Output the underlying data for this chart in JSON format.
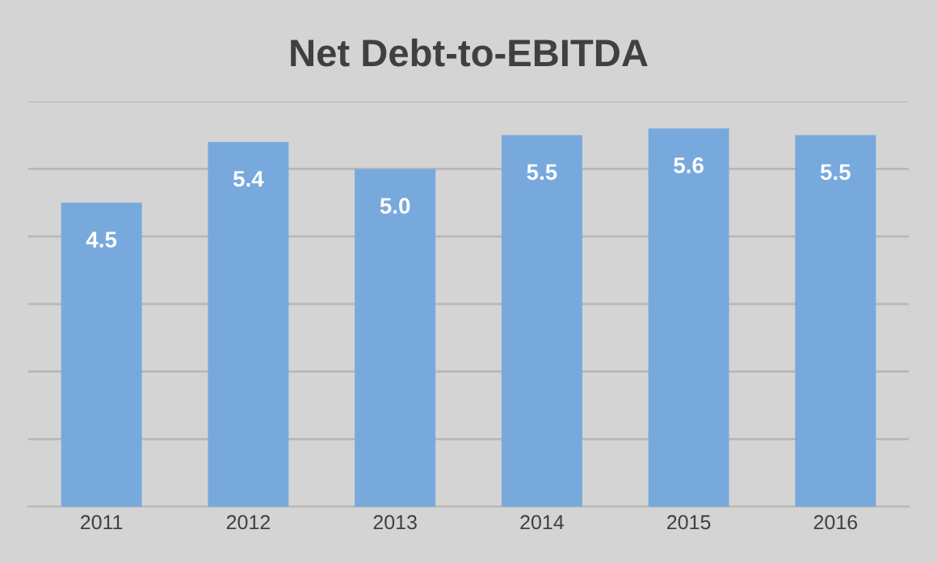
{
  "chart_data": {
    "type": "bar",
    "title": "Net Debt-to-EBITDA",
    "categories": [
      "2011",
      "2012",
      "2013",
      "2014",
      "2015",
      "2016"
    ],
    "values": [
      4.5,
      5.4,
      5.0,
      5.5,
      5.6,
      5.5
    ],
    "color": "#78a9dd",
    "ylim": [
      0,
      6
    ],
    "yticks": [
      {
        "value": 0,
        "label": null
      },
      {
        "value": 1,
        "label": null
      },
      {
        "value": 2,
        "label": null
      },
      {
        "value": 3,
        "label": null
      },
      {
        "value": 4,
        "label": null
      },
      {
        "value": 5,
        "label": null
      },
      {
        "value": 6,
        "label": null
      }
    ],
    "value_labels": [
      "4.5",
      "5.4",
      "5.0",
      "5.5",
      "5.6",
      "5.5"
    ],
    "grid": "y",
    "tick_labels": "x"
  }
}
